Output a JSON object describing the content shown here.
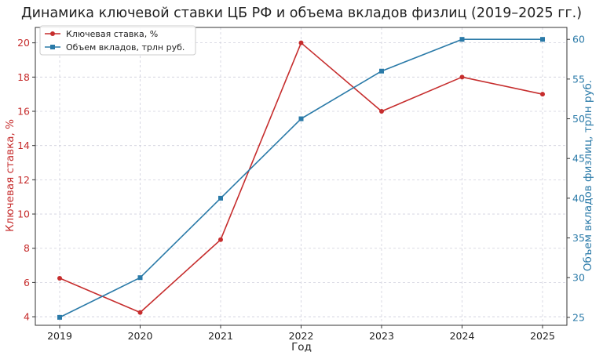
{
  "chart_data": {
    "type": "line",
    "title": "Динамика ключевой ставки ЦБ РФ и объема вкладов физлиц (2019–2025 гг.)",
    "xlabel": "Год",
    "ylabel_left": "Ключевая ставка, %",
    "ylabel_right": "Объем вкладов физлиц, трлн руб.",
    "x": [
      2019,
      2020,
      2021,
      2022,
      2023,
      2024,
      2025
    ],
    "ylim_left": [
      3.5,
      20.9
    ],
    "ylim_right": [
      24.0,
      61.5
    ],
    "yticks_left": [
      4,
      6,
      8,
      10,
      12,
      14,
      16,
      18,
      20
    ],
    "yticks_right": [
      25,
      30,
      35,
      40,
      45,
      50,
      55,
      60
    ],
    "grid": true,
    "legend_position": "top-left",
    "series": [
      {
        "name": "Ключевая ставка, %",
        "axis": "left",
        "color": "#c62d2d",
        "marker": "circle",
        "values": [
          6.25,
          4.25,
          8.5,
          20,
          16,
          18,
          17
        ]
      },
      {
        "name": "Объем вкладов, трлн руб.",
        "axis": "right",
        "color": "#2a7aa8",
        "marker": "square",
        "values": [
          25,
          30,
          40,
          50,
          56,
          60,
          60
        ]
      }
    ]
  }
}
